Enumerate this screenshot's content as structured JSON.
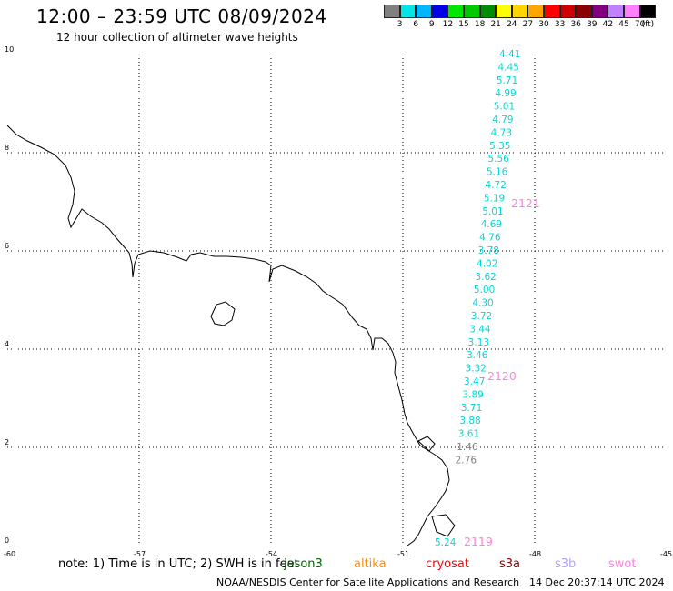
{
  "header": {
    "title": "12:00 – 23:59 UTC 08/09/2024",
    "subtitle": "12 hour collection of altimeter wave heights"
  },
  "colorbar": {
    "colors": [
      "#808080",
      "#00e5e5",
      "#00b7ff",
      "#0000e6",
      "#00e600",
      "#00c800",
      "#008c00",
      "#ffff00",
      "#ffd700",
      "#ffa500",
      "#ff0000",
      "#cc0000",
      "#8b0000",
      "#800080",
      "#c080ff",
      "#ff80ff",
      "#000000"
    ],
    "labels": [
      "3",
      "6",
      "9",
      "12",
      "15",
      "18",
      "21",
      "24",
      "27",
      "30",
      "33",
      "36",
      "39",
      "42",
      "45",
      "70",
      "(ft)"
    ]
  },
  "map": {
    "x_ticks": [
      "-60",
      "-57",
      "-54",
      "-51",
      "-48",
      "-45"
    ],
    "y_ticks": [
      "0",
      "2",
      "4",
      "6",
      "8",
      "10"
    ],
    "track_values": [
      "4.41",
      "4.45",
      "5.71",
      "4.99",
      "5.01",
      "4.79",
      "4.73",
      "5.35",
      "5.56",
      "5.16",
      "4.72",
      "5.19",
      "5.01",
      "4.69",
      "4.76",
      "3.78",
      "4.02",
      "3.62",
      "5.00",
      "4.30",
      "3.72",
      "3.44",
      "3.13",
      "3.46",
      "3.32",
      "3.47",
      "3.89",
      "3.71",
      "3.88",
      "3.61",
      "1.46",
      "2.76",
      "5.24"
    ],
    "pass_labels": [
      "2121",
      "2120",
      "2119"
    ],
    "colors": {
      "cyan": "#00d8d8",
      "gray": "#808080",
      "pink": "#ff80e0"
    }
  },
  "footer": {
    "note": "note: 1) Time is in UTC; 2) SWH is in feet",
    "legend": [
      {
        "label": "jason3",
        "color": "#006400"
      },
      {
        "label": "altika",
        "color": "#ff8c00"
      },
      {
        "label": "cryosat",
        "color": "#ff0000"
      },
      {
        "label": "s3a",
        "color": "#8b0000"
      },
      {
        "label": "s3b",
        "color": "#b0a0ff"
      },
      {
        "label": "swot",
        "color": "#ff80e0"
      }
    ],
    "credit": "NOAA/NESDIS Center for Satellite Applications and Research",
    "timestamp": "14 Dec 20:37:14 UTC 2024"
  }
}
